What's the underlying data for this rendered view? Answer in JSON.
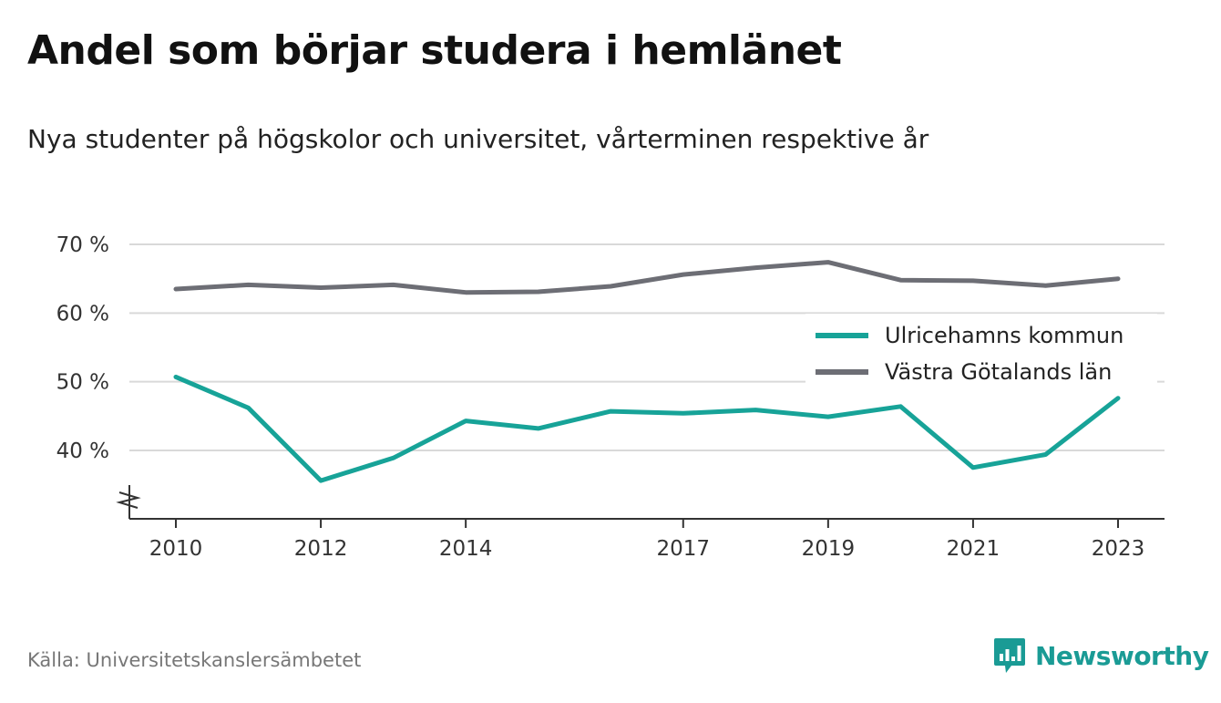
{
  "header": {
    "title": "Andel som börjar studera i hemlänet",
    "subtitle": "Nya studenter på högskolor och universitet, vårterminen respektive år"
  },
  "footer": {
    "source": "Källa: Universitetskanslersämbetet",
    "brand": "Newsworthy",
    "brand_icon": "newsworthy-logo-icon"
  },
  "colors": {
    "ulricehamn": "#17a398",
    "vastra_gotaland": "#6d6e75",
    "grid": "#d9d9d9",
    "axis": "#333333"
  },
  "chart_data": {
    "type": "line",
    "title": "Andel som börjar studera i hemlänet",
    "subtitle": "Nya studenter på högskolor och universitet, vårterminen respektive år",
    "xlabel": "",
    "ylabel": "",
    "x": [
      2010,
      2011,
      2012,
      2013,
      2014,
      2015,
      2016,
      2017,
      2018,
      2019,
      2020,
      2021,
      2022,
      2023
    ],
    "x_ticks": [
      2010,
      2012,
      2014,
      2017,
      2019,
      2021,
      2023
    ],
    "y_ticks": [
      40,
      50,
      60,
      70
    ],
    "y_tick_labels": [
      "40 %",
      "50 %",
      "60 %",
      "70 %"
    ],
    "ylim": [
      30,
      70
    ],
    "y_axis_break": true,
    "grid": true,
    "legend_position": "right",
    "series": [
      {
        "name": "Ulricehamns kommun",
        "color": "#17a398",
        "values": [
          50.7,
          46.2,
          35.6,
          38.9,
          44.3,
          43.2,
          45.7,
          45.4,
          45.9,
          44.9,
          46.4,
          37.5,
          39.4,
          47.6
        ]
      },
      {
        "name": "Västra Götalands län",
        "color": "#6d6e75",
        "values": [
          63.5,
          64.1,
          63.7,
          64.1,
          63.0,
          63.1,
          63.9,
          65.6,
          66.6,
          67.4,
          64.8,
          64.7,
          64.0,
          65.0
        ]
      }
    ]
  }
}
